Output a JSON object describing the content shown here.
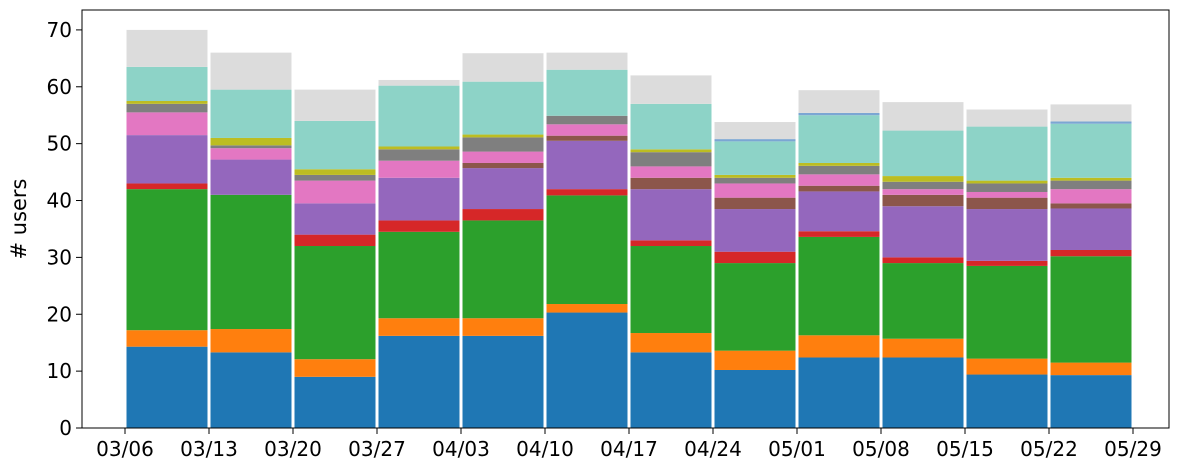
{
  "chart_data": {
    "type": "bar",
    "stacked": true,
    "xlabel": "",
    "ylabel": "# users",
    "ylim": [
      0,
      73.5
    ],
    "yticks": [
      0,
      10,
      20,
      30,
      40,
      50,
      60,
      70
    ],
    "xtick_labels": [
      "03/06",
      "03/13",
      "03/20",
      "03/27",
      "04/03",
      "04/10",
      "04/17",
      "04/24",
      "05/01",
      "05/08",
      "05/15",
      "05/22",
      "05/29"
    ],
    "categories": [
      "03/06",
      "03/13",
      "03/20",
      "03/27",
      "04/03",
      "04/10",
      "04/17",
      "04/24",
      "05/01",
      "05/08",
      "05/15",
      "05/22"
    ],
    "legend": "none",
    "grid": false,
    "series": [
      {
        "color": "#1f77b4",
        "values": [
          14.3,
          13.3,
          9.0,
          16.2,
          16.2,
          20.3,
          13.3,
          10.2,
          12.4,
          12.4,
          9.4,
          9.3
        ]
      },
      {
        "color": "#ff7f0e",
        "values": [
          2.9,
          4.1,
          3.1,
          3.1,
          3.1,
          1.5,
          3.4,
          3.4,
          3.9,
          3.3,
          2.8,
          2.2
        ]
      },
      {
        "color": "#2ca02c",
        "values": [
          24.8,
          23.6,
          19.9,
          15.2,
          17.2,
          19.1,
          15.3,
          15.4,
          17.3,
          13.3,
          16.3,
          18.7
        ]
      },
      {
        "color": "#d62728",
        "values": [
          1.0,
          0.0,
          2.0,
          2.0,
          2.0,
          1.1,
          1.0,
          2.0,
          1.0,
          1.0,
          0.9,
          1.1
        ]
      },
      {
        "color": "#9467bd",
        "values": [
          8.5,
          6.2,
          5.5,
          7.5,
          7.2,
          8.5,
          9.0,
          7.5,
          7.0,
          9.0,
          9.1,
          7.3
        ]
      },
      {
        "color": "#8c564b",
        "values": [
          0.0,
          0.0,
          0.0,
          0.0,
          0.9,
          0.9,
          2.0,
          2.0,
          1.0,
          2.0,
          2.0,
          0.9
        ]
      },
      {
        "color": "#e377c2",
        "values": [
          4.0,
          2.0,
          4.0,
          3.0,
          2.0,
          2.0,
          2.0,
          2.5,
          2.0,
          1.0,
          1.0,
          2.5
        ]
      },
      {
        "color": "#7f7f7f",
        "values": [
          1.5,
          0.5,
          1.0,
          2.0,
          2.5,
          1.5,
          2.5,
          1.0,
          1.5,
          1.3,
          1.5,
          1.5
        ]
      },
      {
        "color": "#bcbd22",
        "values": [
          0.5,
          1.3,
          1.0,
          0.5,
          0.5,
          0.0,
          0.5,
          0.5,
          0.5,
          1.0,
          0.5,
          0.5
        ]
      },
      {
        "color": "#9edae5",
        "values": [
          0.0,
          0.0,
          0.0,
          0.0,
          0.0,
          0.0,
          0.0,
          0.0,
          0.0,
          0.0,
          0.0,
          0.0
        ]
      },
      {
        "color": "#8dd3c7",
        "values": [
          6.0,
          8.5,
          8.5,
          10.7,
          9.3,
          8.1,
          8.0,
          5.9,
          8.4,
          8.0,
          9.5,
          9.5
        ]
      },
      {
        "color": "#7ba6d3",
        "values": [
          0.0,
          0.0,
          0.0,
          0.0,
          0.0,
          0.0,
          0.0,
          0.4,
          0.4,
          0.0,
          0.0,
          0.4
        ]
      },
      {
        "color": "#dcdcdc",
        "values": [
          6.5,
          6.5,
          5.5,
          1.0,
          5.0,
          3.0,
          5.0,
          3.0,
          4.0,
          5.0,
          3.0,
          3.0
        ]
      }
    ],
    "totals": [
      70,
      66,
      60,
      62,
      66,
      66,
      62,
      54,
      59,
      57,
      56,
      57
    ]
  }
}
